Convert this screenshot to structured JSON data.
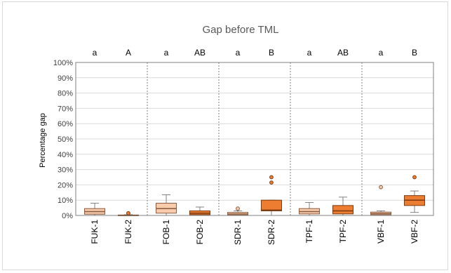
{
  "chart_data": {
    "type": "box",
    "title": "Gap before TML",
    "xlabel": "",
    "ylabel": "Percentage gap",
    "ylim": [
      0,
      100
    ],
    "y_ticks": [
      "0%",
      "10%",
      "20%",
      "30%",
      "40%",
      "50%",
      "60%",
      "70%",
      "80%",
      "90%",
      "100%"
    ],
    "grid": true,
    "group_separators": "dotted",
    "colors": {
      "light": "#f8cbad",
      "dark": "#ed7d31",
      "light_edge": "#8a5a3c",
      "dark_edge": "#7a3a10",
      "grid": "#d9d9d9",
      "whisker": "#808080"
    },
    "groups": [
      {
        "letters": [
          "a",
          "A"
        ]
      },
      {
        "letters": [
          "a",
          "AB"
        ]
      },
      {
        "letters": [
          "a",
          "B"
        ]
      },
      {
        "letters": [
          "a",
          "AB"
        ]
      },
      {
        "letters": [
          "a",
          "B"
        ]
      }
    ],
    "boxes": [
      {
        "label": "FUK-1",
        "style": "light",
        "min": 0,
        "q1": 0.8,
        "median": 2.5,
        "q3": 4.5,
        "max": 8,
        "outliers": []
      },
      {
        "label": "FUK-2",
        "style": "dark",
        "min": 0,
        "q1": 0,
        "median": 0,
        "q3": 0.3,
        "max": 0.5,
        "outliers": [
          1.5
        ]
      },
      {
        "label": "FOB-1",
        "style": "light",
        "min": 0,
        "q1": 1.5,
        "median": 4.5,
        "q3": 8,
        "max": 13.5,
        "outliers": []
      },
      {
        "label": "FOB-2",
        "style": "dark",
        "min": 0,
        "q1": 0.5,
        "median": 1.5,
        "q3": 3,
        "max": 5.5,
        "outliers": []
      },
      {
        "label": "SDR-1",
        "style": "light",
        "min": 0,
        "q1": 0.3,
        "median": 1,
        "q3": 2,
        "max": 3,
        "outliers": [
          4.5
        ]
      },
      {
        "label": "SDR-2",
        "style": "dark",
        "min": 0,
        "q1": 3,
        "median": 3.5,
        "q3": 10,
        "max": 10,
        "outliers": [
          21.5,
          25
        ]
      },
      {
        "label": "TPF-1",
        "style": "light",
        "min": 0,
        "q1": 1,
        "median": 2.5,
        "q3": 4.5,
        "max": 8.5,
        "outliers": []
      },
      {
        "label": "TPF-2",
        "style": "dark",
        "min": 0,
        "q1": 1,
        "median": 3,
        "q3": 6.5,
        "max": 12,
        "outliers": []
      },
      {
        "label": "VBF-1",
        "style": "light",
        "min": 0,
        "q1": 0.5,
        "median": 1.2,
        "q3": 2.2,
        "max": 3,
        "outliers": [
          18.5
        ]
      },
      {
        "label": "VBF-2",
        "style": "dark",
        "min": 2,
        "q1": 6.5,
        "median": 10,
        "q3": 13,
        "max": 16,
        "outliers": [
          25
        ]
      }
    ]
  }
}
